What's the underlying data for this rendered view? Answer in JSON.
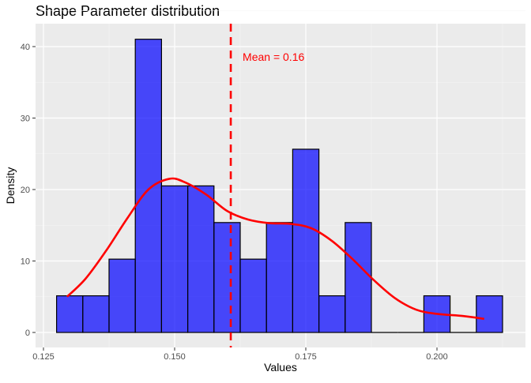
{
  "chart_data": {
    "type": "bar",
    "title": "Shape Parameter distribution",
    "xlabel": "Values",
    "ylabel": "Density",
    "xlim": [
      0.122,
      0.2155
    ],
    "ylim": [
      -2,
      43
    ],
    "grid": true,
    "bin_width": 0.005,
    "bins": [
      {
        "center": 0.13,
        "density": 5.13
      },
      {
        "center": 0.135,
        "density": 5.13
      },
      {
        "center": 0.14,
        "density": 10.26
      },
      {
        "center": 0.145,
        "density": 41.03
      },
      {
        "center": 0.15,
        "density": 20.51
      },
      {
        "center": 0.155,
        "density": 20.51
      },
      {
        "center": 0.16,
        "density": 15.38
      },
      {
        "center": 0.165,
        "density": 10.26
      },
      {
        "center": 0.17,
        "density": 15.38
      },
      {
        "center": 0.175,
        "density": 25.64
      },
      {
        "center": 0.18,
        "density": 5.13
      },
      {
        "center": 0.185,
        "density": 15.38
      },
      {
        "center": 0.19,
        "density": 0
      },
      {
        "center": 0.195,
        "density": 0
      },
      {
        "center": 0.2,
        "density": 5.13
      },
      {
        "center": 0.205,
        "density": 0
      },
      {
        "center": 0.21,
        "density": 5.13
      }
    ],
    "density_curve": {
      "x": [
        0.1295,
        0.133,
        0.137,
        0.141,
        0.145,
        0.149,
        0.152,
        0.156,
        0.16,
        0.164,
        0.168,
        0.172,
        0.176,
        0.18,
        0.184,
        0.188,
        0.192,
        0.196,
        0.2,
        0.205,
        0.209
      ],
      "y": [
        5,
        7.5,
        11.5,
        16,
        20,
        21.5,
        21,
        19.3,
        17,
        15.8,
        15.3,
        15.2,
        14.6,
        12.8,
        10.2,
        7.3,
        4.8,
        3.2,
        2.6,
        2.3,
        1.9
      ],
      "color": "#ff0000"
    },
    "mean": {
      "value": 0.1607,
      "label": "Mean = 0.16",
      "color": "#ff0000"
    },
    "bar_color": "#0000ff",
    "x_ticks": [
      0.125,
      0.15,
      0.175,
      0.2
    ],
    "x_tick_labels": [
      "0.125",
      "0.150",
      "0.175",
      "0.200"
    ],
    "y_ticks": [
      0,
      10,
      20,
      30,
      40
    ],
    "y_tick_labels": [
      "0",
      "10",
      "20",
      "30",
      "40"
    ]
  }
}
